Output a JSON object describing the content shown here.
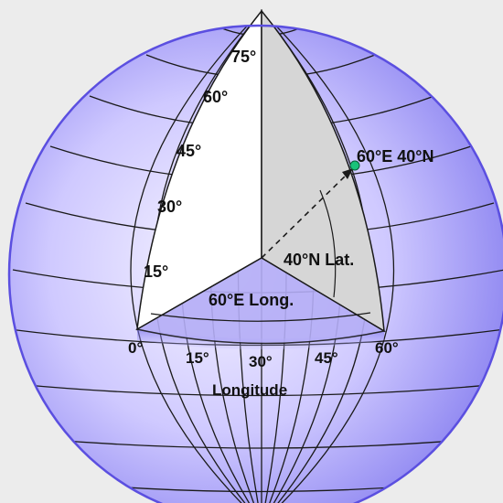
{
  "labels": {
    "lat_75": "75°",
    "lat_60": "60°",
    "lat_45": "45°",
    "lat_30": "30°",
    "lat_15": "15°",
    "point": "60°E 40°N",
    "lat_angle": "40°N Lat.",
    "long_angle": "60°E Long.",
    "lon_0": "0°",
    "lon_15": "15°",
    "lon_30": "30°",
    "lon_45": "45°",
    "lon_60": "60°",
    "axis_longitude": "Longitude"
  },
  "colors": {
    "background": "#ececec",
    "globe_center": "#f4f2ff",
    "globe_edge": "#8a82f0",
    "outline": "#5b4fe0",
    "grid": "#1a1a1a",
    "white_face": "#ffffff",
    "grey_face": "#d6d6d6",
    "point_fill": "#19c27a"
  }
}
